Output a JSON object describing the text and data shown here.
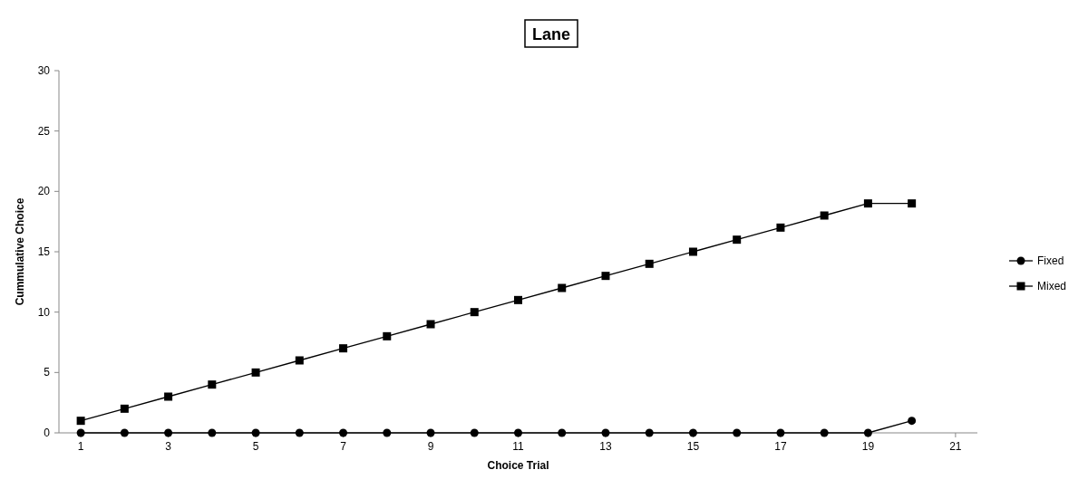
{
  "chart_data": {
    "type": "line",
    "title": "Lane",
    "xlabel": "Choice Trial",
    "ylabel": "Cummulative Choice",
    "x": [
      1,
      2,
      3,
      4,
      5,
      6,
      7,
      8,
      9,
      10,
      11,
      12,
      13,
      14,
      15,
      16,
      17,
      18,
      19,
      20
    ],
    "series": [
      {
        "name": "Fixed",
        "color": "#000000",
        "marker": "circle",
        "values": [
          0,
          0,
          0,
          0,
          0,
          0,
          0,
          0,
          0,
          0,
          0,
          0,
          0,
          0,
          0,
          0,
          0,
          0,
          0,
          1
        ]
      },
      {
        "name": "Mixed",
        "color": "#000000",
        "marker": "square",
        "values": [
          1,
          2,
          3,
          4,
          5,
          6,
          7,
          8,
          9,
          10,
          11,
          12,
          13,
          14,
          15,
          16,
          17,
          18,
          19,
          19
        ]
      }
    ],
    "xlim": [
      0.5,
      21.5
    ],
    "xticks": [
      1,
      3,
      5,
      7,
      9,
      11,
      13,
      15,
      17,
      19,
      21
    ],
    "ylim": [
      0,
      30
    ],
    "yticks": [
      0,
      5,
      10,
      15,
      20,
      25,
      30
    ],
    "grid": false,
    "legend": "right",
    "line_style": "solid"
  }
}
